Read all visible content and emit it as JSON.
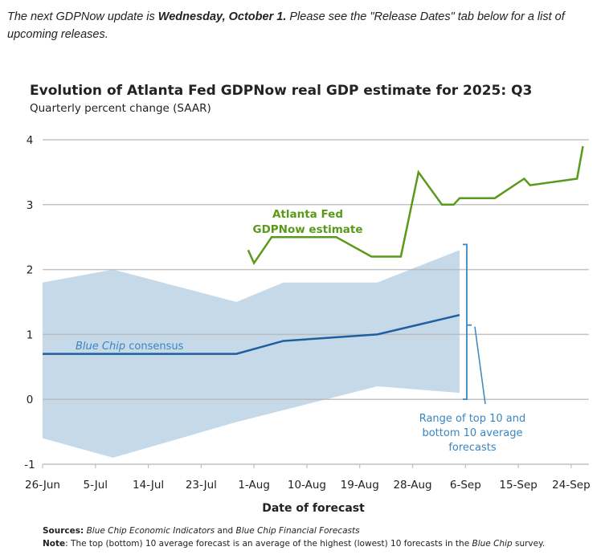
{
  "intro": {
    "prefix": "The next GDPNow update is ",
    "date": "Wednesday, October 1.",
    "suffix": " Please see the \"Release Dates\" tab below for a list of upcoming releases."
  },
  "colors": {
    "gdpnow": "#5a9a1a",
    "consensus": "#1f5fa0",
    "band": "#c5d9e8",
    "annotation_blue": "#3a86c0",
    "grid": "#c8c8c8"
  },
  "chart_data": {
    "type": "line",
    "title": "Evolution of Atlanta Fed GDPNow real GDP estimate for 2025: Q3",
    "subtitle": "Quarterly percent change (SAAR)",
    "xlabel": "Date of forecast",
    "ylabel": "",
    "x_unit": "days since 26-Jun",
    "xlim": [
      0,
      93
    ],
    "ylim": [
      -1,
      4
    ],
    "yticks": [
      4,
      3,
      2,
      1,
      0,
      -1
    ],
    "ytick_labels": [
      "4",
      "3",
      "2",
      "1",
      "0",
      "-1"
    ],
    "xticks": [
      0,
      9,
      18,
      27,
      36,
      45,
      54,
      63,
      72,
      81,
      90
    ],
    "xtick_labels": [
      "26-Jun",
      "5-Jul",
      "14-Jul",
      "23-Jul",
      "1-Aug",
      "10-Aug",
      "19-Aug",
      "28-Aug",
      "6-Sep",
      "15-Sep",
      "24-Sep"
    ],
    "grid": true,
    "series": [
      {
        "name": "Atlanta Fed GDPNow estimate",
        "kind": "line",
        "x": [
          35,
          36,
          39,
          50,
          56,
          61,
          64,
          68,
          70,
          71,
          77,
          82,
          83,
          91,
          92
        ],
        "values": [
          2.3,
          2.1,
          2.5,
          2.5,
          2.2,
          2.2,
          3.5,
          3.0,
          3.0,
          3.1,
          3.1,
          3.4,
          3.3,
          3.4,
          3.9
        ]
      },
      {
        "name": "Blue Chip consensus",
        "kind": "line",
        "x": [
          0,
          33,
          41,
          57,
          71
        ],
        "values": [
          0.7,
          0.7,
          0.9,
          1.0,
          1.3
        ]
      },
      {
        "name": "Range of top 10 and bottom 10 average forecasts",
        "kind": "band",
        "upper_x": [
          0,
          12,
          33,
          41,
          57,
          71
        ],
        "upper": [
          1.8,
          2.0,
          1.5,
          1.8,
          1.8,
          2.3
        ],
        "lower_x": [
          0,
          12,
          33,
          57,
          71
        ],
        "lower": [
          -0.6,
          -0.9,
          -0.35,
          0.2,
          0.1
        ]
      }
    ],
    "annotations": {
      "gdpnow_line1": "Atlanta Fed",
      "gdpnow_line2": "GDPNow estimate",
      "consensus_italic": "Blue Chip",
      "consensus_rest": " consensus",
      "range_line1": "Range of top 10 and",
      "range_line2": "bottom 10 average",
      "range_line3": "forecasts"
    }
  },
  "footer": {
    "sources_label": "Sources:",
    "sources_a": "Blue Chip Economic Indicators",
    "sources_and": " and ",
    "sources_b": "Blue Chip Financial Forecasts",
    "note_label": "Note",
    "note_text1": ": The top (bottom) 10 average forecast is an average of the highest (lowest) 10 forecasts in the ",
    "note_italic": "Blue Chip",
    "note_text2": " survey."
  }
}
